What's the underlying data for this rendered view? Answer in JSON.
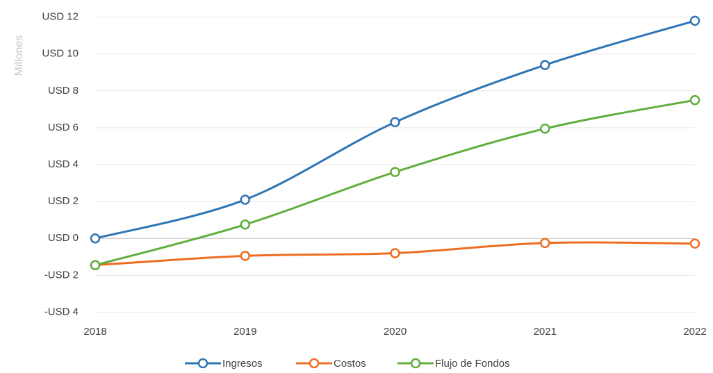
{
  "chart_data": {
    "type": "line",
    "y_label": "Millones",
    "categories": [
      "2018",
      "2019",
      "2020",
      "2021",
      "2022"
    ],
    "series": [
      {
        "name": "Ingresos",
        "color": "#2e75b6",
        "values": [
          0,
          2.1,
          6.3,
          9.4,
          11.8
        ]
      },
      {
        "name": "Costos",
        "color": "#ed6d23",
        "values": [
          -1.45,
          -0.95,
          -0.8,
          -0.25,
          -0.28
        ]
      },
      {
        "name": "Flujo de Fondos",
        "color": "#5fae3e",
        "values": [
          -1.45,
          0.75,
          3.6,
          5.95,
          7.5
        ]
      }
    ],
    "ylim": [
      -4,
      12
    ],
    "yticks": [
      {
        "value": -4,
        "label": "-USD 4"
      },
      {
        "value": -2,
        "label": "-USD 2"
      },
      {
        "value": 0,
        "label": "USD 0"
      },
      {
        "value": 2,
        "label": "USD 2"
      },
      {
        "value": 4,
        "label": "USD 4"
      },
      {
        "value": 6,
        "label": "USD 6"
      },
      {
        "value": 8,
        "label": "USD 8"
      },
      {
        "value": 10,
        "label": "USD 10"
      },
      {
        "value": 12,
        "label": "USD 12"
      }
    ],
    "grid": true,
    "smooth": true,
    "legend": "bottom"
  }
}
